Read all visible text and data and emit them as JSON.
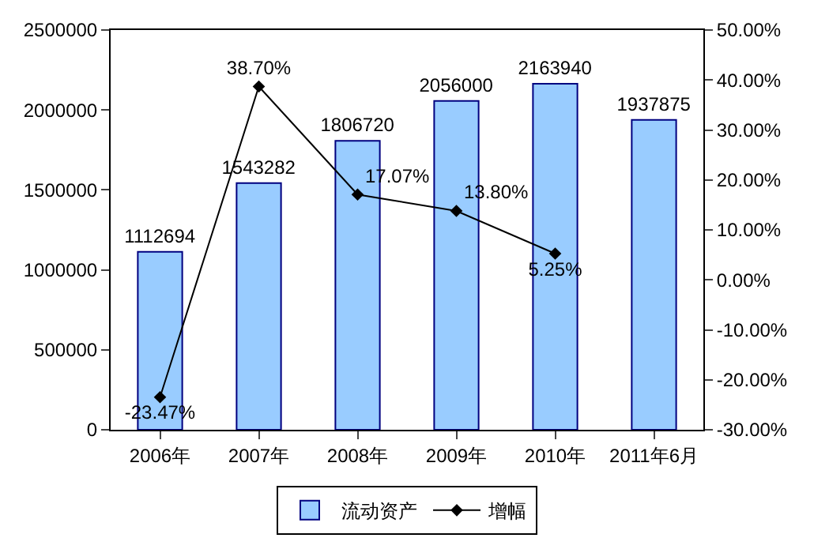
{
  "chart_data": {
    "type": "bar",
    "categories": [
      "2006年",
      "2007年",
      "2008年",
      "2009年",
      "2010年",
      "2011年6月"
    ],
    "series": [
      {
        "name": "流动资产",
        "color": "#99ccff",
        "values": [
          1112694,
          1543282,
          1806720,
          2056000,
          2163940,
          1937875
        ]
      },
      {
        "name": "增幅",
        "type": "line",
        "axis": "y2",
        "color": "#000000",
        "values": [
          -23.47,
          38.7,
          17.07,
          13.8,
          5.25,
          null
        ],
        "value_labels": [
          "-23.47%",
          "38.70%",
          "17.07%",
          "13.80%",
          "5.25%",
          null
        ]
      }
    ],
    "ylim": [
      0,
      2500000
    ],
    "yticks": [
      0,
      500000,
      1000000,
      1500000,
      2000000,
      2500000
    ],
    "y2lim": [
      -30,
      50
    ],
    "y2ticks": [
      {
        "value": -30,
        "label": "-30.00%"
      },
      {
        "value": -20,
        "label": "-20.00%"
      },
      {
        "value": -10,
        "label": "-10.00%"
      },
      {
        "value": 0,
        "label": "0.00%"
      },
      {
        "value": 10,
        "label": "10.00%"
      },
      {
        "value": 20,
        "label": "20.00%"
      },
      {
        "value": 30,
        "label": "30.00%"
      },
      {
        "value": 40,
        "label": "40.00%"
      },
      {
        "value": 50,
        "label": "50.00%"
      }
    ],
    "data_labels": true,
    "legend": "bottom",
    "marker": "diamond",
    "line_style": "solid",
    "grid": false
  }
}
